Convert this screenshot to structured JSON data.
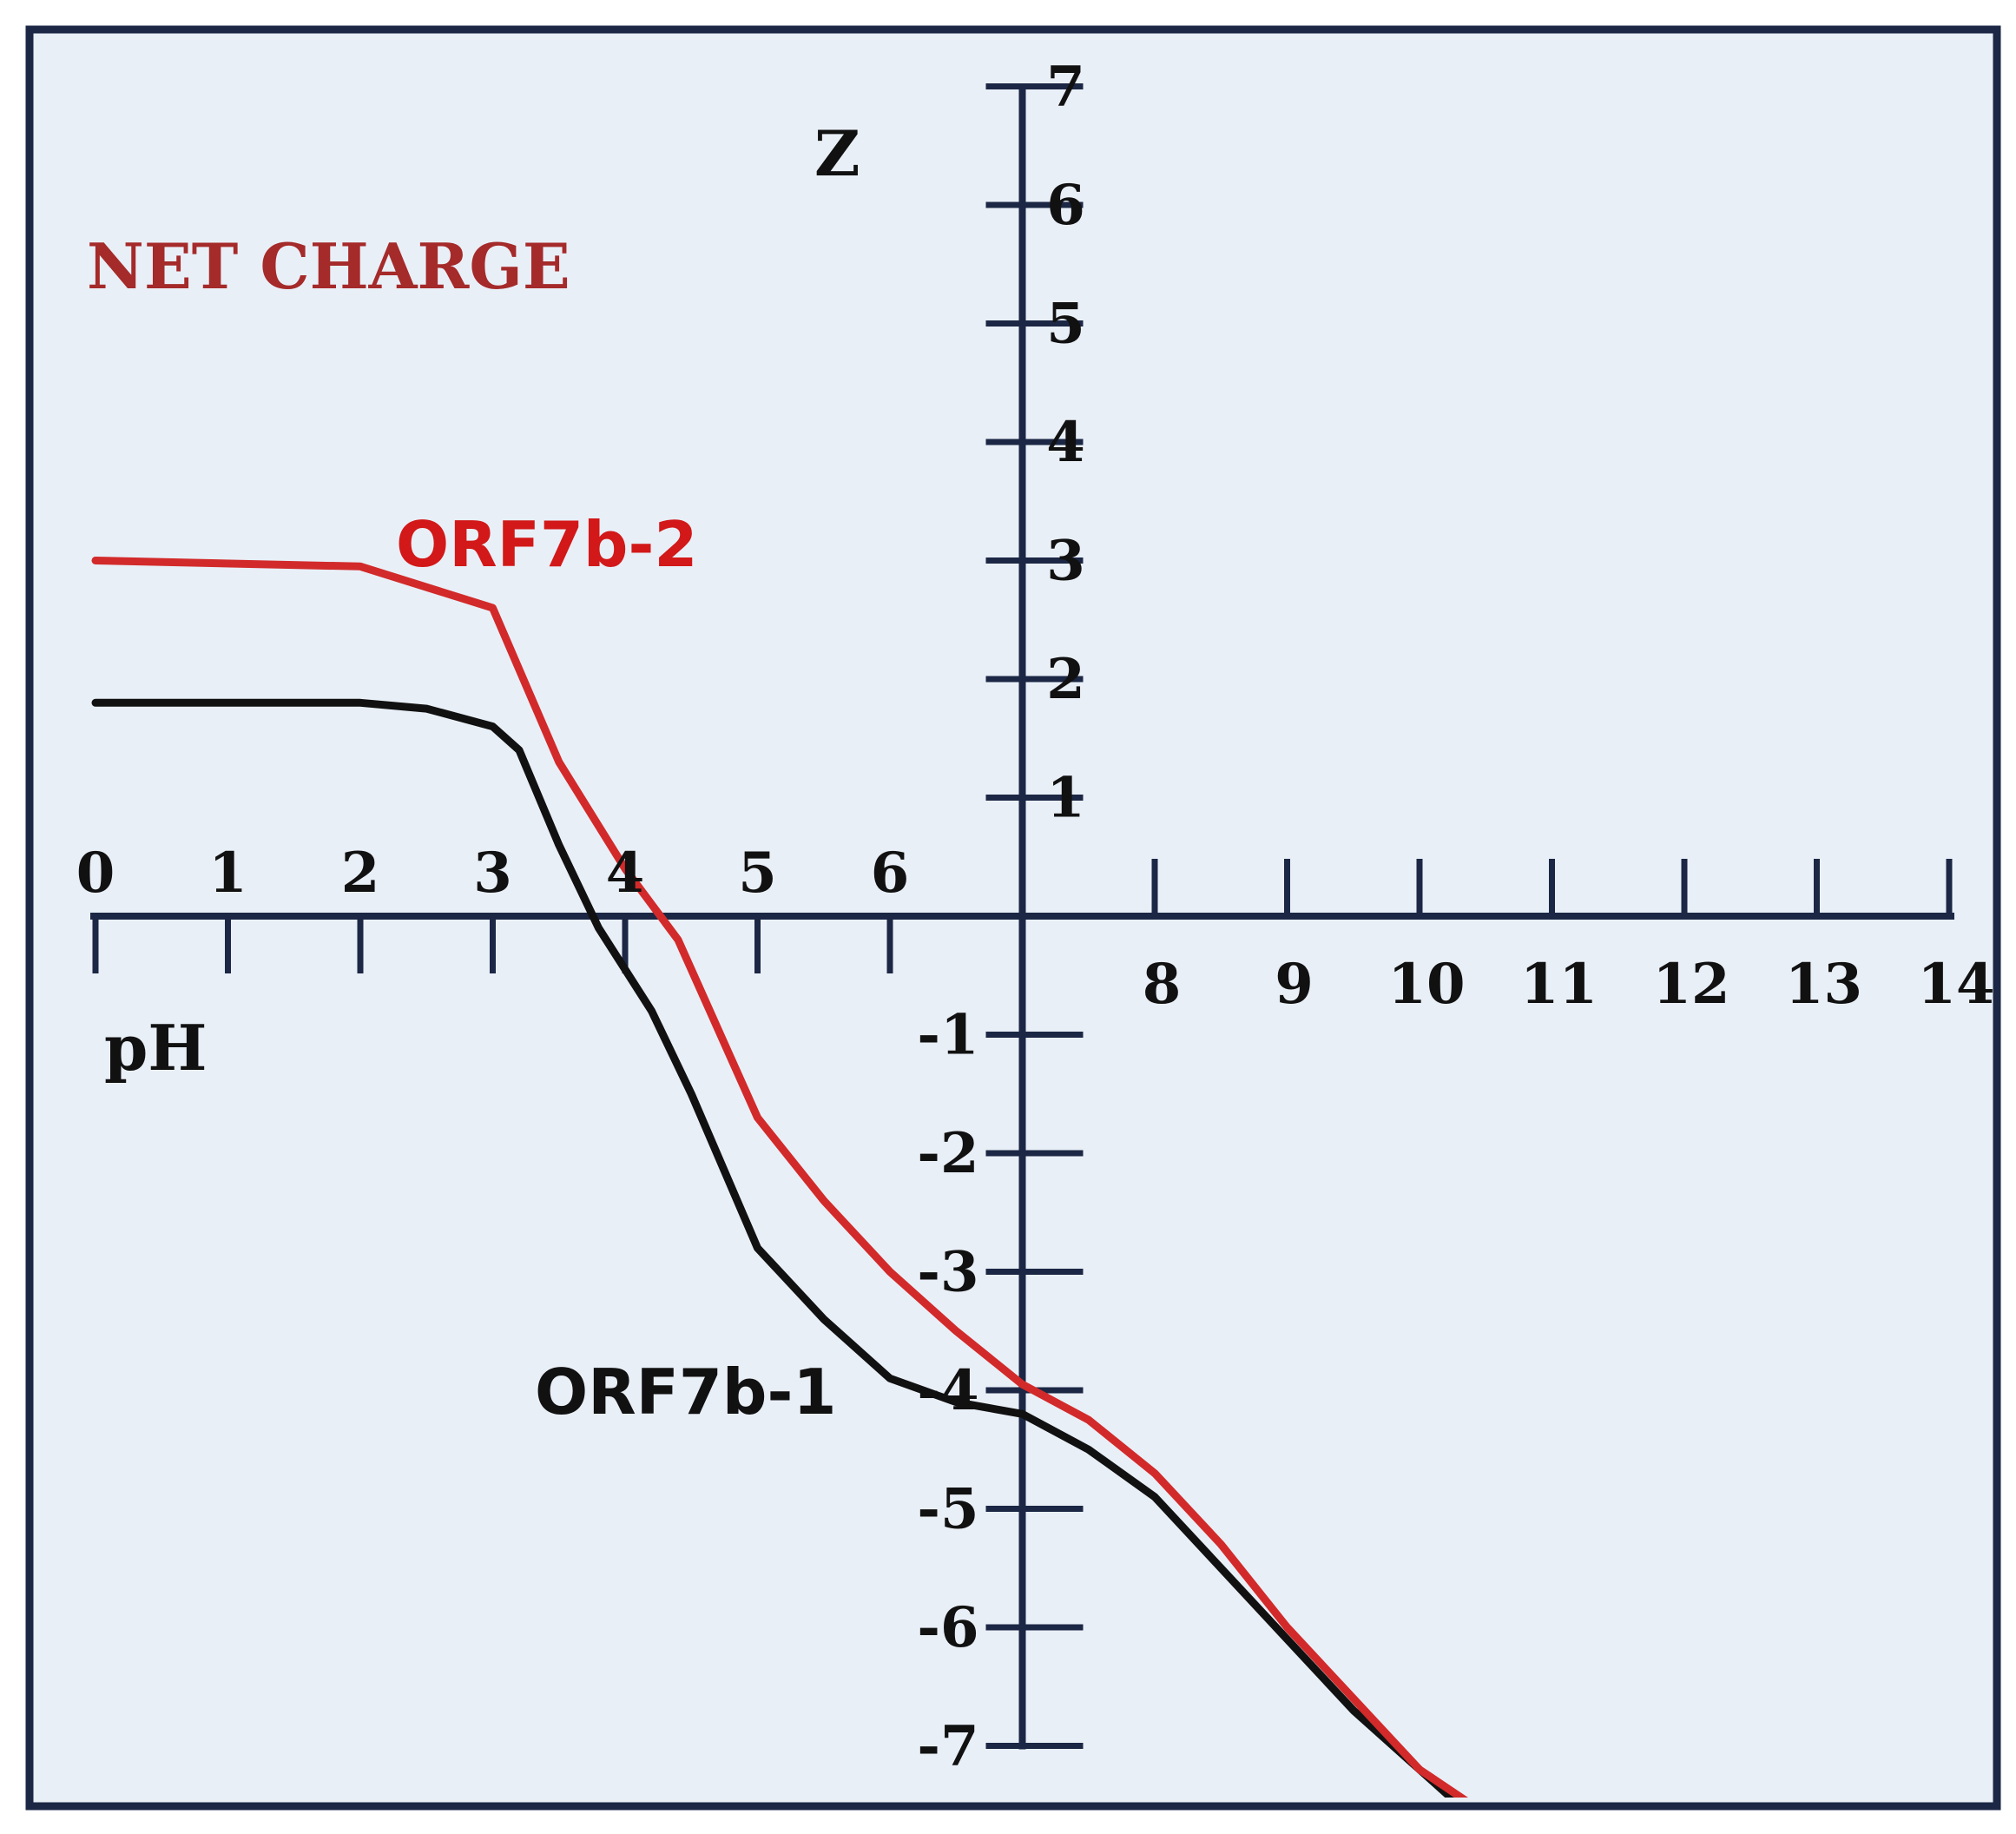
{
  "chart_data": {
    "type": "line",
    "title": "NET CHARGE",
    "xlabel": "pH",
    "ylabel": "Z",
    "xlim": [
      0,
      14
    ],
    "ylim": [
      -7,
      7
    ],
    "x_ticks_upper": [
      "0",
      "1",
      "2",
      "3",
      "4",
      "5",
      "6"
    ],
    "x_ticks_lower": [
      "8",
      "9",
      "10",
      "11",
      "12",
      "13",
      "14"
    ],
    "y_ticks_positive": [
      "7",
      "6",
      "5",
      "4",
      "3",
      "2",
      "1"
    ],
    "y_ticks_negative": [
      "-1",
      "-2",
      "-3",
      "-4",
      "-5",
      "-6",
      "-7"
    ],
    "grid": false,
    "background": "#e9eff7",
    "series": [
      {
        "name": "ORF7b-2",
        "color": "#d22a2a",
        "x": [
          0.0,
          2.0,
          3.0,
          3.5,
          4.0,
          4.4,
          4.8,
          5.0,
          5.5,
          6.0,
          6.5,
          7.0,
          7.5,
          8.0,
          8.5,
          9.0,
          9.5,
          10.0,
          10.4
        ],
        "y": [
          3.0,
          2.95,
          2.6,
          1.3,
          0.4,
          -0.2,
          -1.2,
          -1.7,
          -2.4,
          -3.0,
          -3.5,
          -3.95,
          -4.25,
          -4.7,
          -5.3,
          -6.0,
          -6.6,
          -7.2,
          -7.5
        ]
      },
      {
        "name": "ORF7b-1",
        "color": "#111111",
        "x": [
          0.0,
          2.0,
          2.5,
          3.0,
          3.2,
          3.5,
          3.8,
          4.2,
          4.5,
          5.0,
          5.5,
          6.0,
          6.5,
          7.0,
          7.5,
          8.0,
          8.5,
          9.0,
          9.5,
          10.0,
          10.3
        ],
        "y": [
          1.8,
          1.8,
          1.75,
          1.6,
          1.4,
          0.6,
          -0.1,
          -0.8,
          -1.5,
          -2.8,
          -3.4,
          -3.9,
          -4.1,
          -4.2,
          -4.5,
          -4.9,
          -5.5,
          -6.1,
          -6.7,
          -7.2,
          -7.5
        ]
      }
    ]
  }
}
